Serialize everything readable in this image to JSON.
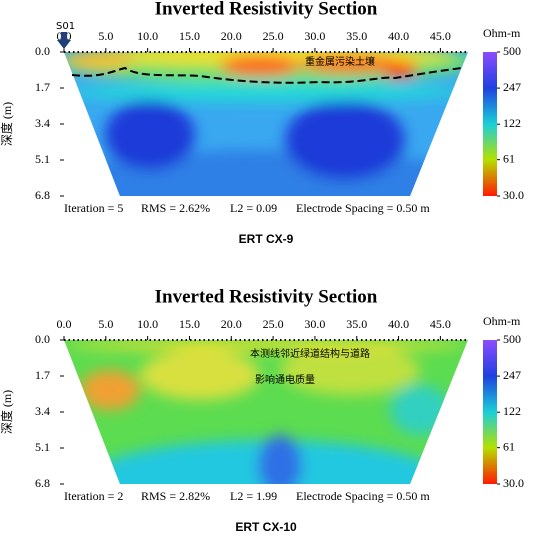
{
  "chart_data": [
    {
      "type": "heatmap",
      "title": "Inverted Resistivity Section",
      "caption": "ERT CX-9",
      "ylabel": "深度 (m)",
      "colorbar_label": "Ohm-m",
      "xlim": [
        0,
        48.3
      ],
      "xticks": [
        {
          "value": 0,
          "label": "0.0"
        },
        {
          "value": 5,
          "label": "5.0"
        },
        {
          "value": 10,
          "label": "10.0"
        },
        {
          "value": 15,
          "label": "15.0"
        },
        {
          "value": 20,
          "label": "20.0"
        },
        {
          "value": 25,
          "label": "25.0"
        },
        {
          "value": 30,
          "label": "30.0"
        },
        {
          "value": 35,
          "label": "35.0"
        },
        {
          "value": 40,
          "label": "40.0"
        },
        {
          "value": 45,
          "label": "45.0"
        }
      ],
      "ylim": [
        0,
        6.8
      ],
      "yticks": [
        {
          "value": 0,
          "label": "0.0"
        },
        {
          "value": 1.7,
          "label": "1.7"
        },
        {
          "value": 3.4,
          "label": "3.4"
        },
        {
          "value": 5.1,
          "label": "5.1"
        },
        {
          "value": 6.8,
          "label": "6.8"
        }
      ],
      "clim": [
        30,
        500
      ],
      "log_scale": true,
      "cticks": [
        500,
        247,
        122,
        61,
        {
          "value": 30,
          "label": "30.0"
        }
      ],
      "ccolors": [
        "#8c4cff",
        "#1f40e0",
        "#1ad0d8",
        "#b4e000",
        "#ff1a00"
      ],
      "stats": [
        "Iteration = 5",
        "RMS = 2.62%",
        "L2 = 0.09",
        "Electrode Spacing = 0.50 m"
      ],
      "annotations": [
        "S01",
        "重金属污染土壤"
      ]
    },
    {
      "type": "heatmap",
      "title": "Inverted Resistivity Section",
      "caption": "ERT CX-10",
      "ylabel": "深度 (m)",
      "colorbar_label": "Ohm-m",
      "xlim": [
        0,
        48.3
      ],
      "xticks": [
        {
          "value": 0,
          "label": "0.0"
        },
        {
          "value": 5,
          "label": "5.0"
        },
        {
          "value": 10,
          "label": "10.0"
        },
        {
          "value": 15,
          "label": "15.0"
        },
        {
          "value": 20,
          "label": "20.0"
        },
        {
          "value": 25,
          "label": "25.0"
        },
        {
          "value": 30,
          "label": "30.0"
        },
        {
          "value": 35,
          "label": "35.0"
        },
        {
          "value": 40,
          "label": "40.0"
        },
        {
          "value": 45,
          "label": "45.0"
        }
      ],
      "ylim": [
        0,
        6.8
      ],
      "yticks": [
        {
          "value": 0,
          "label": "0.0"
        },
        {
          "value": 1.7,
          "label": "1.7"
        },
        {
          "value": 3.4,
          "label": "3.4"
        },
        {
          "value": 5.1,
          "label": "5.1"
        },
        {
          "value": 6.8,
          "label": "6.8"
        }
      ],
      "clim": [
        30,
        500
      ],
      "log_scale": true,
      "cticks": [
        500,
        247,
        122,
        61,
        {
          "value": 30,
          "label": "30.0"
        }
      ],
      "ccolors": [
        "#8c4cff",
        "#1f40e0",
        "#1ad0d8",
        "#b4e000",
        "#ff1a00"
      ],
      "stats": [
        "Iteration = 2",
        "RMS = 2.82%",
        "L2 = 1.99",
        "Electrode Spacing = 0.50 m"
      ],
      "annotations": [
        "本测线邻近绿道结构与道路",
        "影响通电质量"
      ]
    }
  ]
}
